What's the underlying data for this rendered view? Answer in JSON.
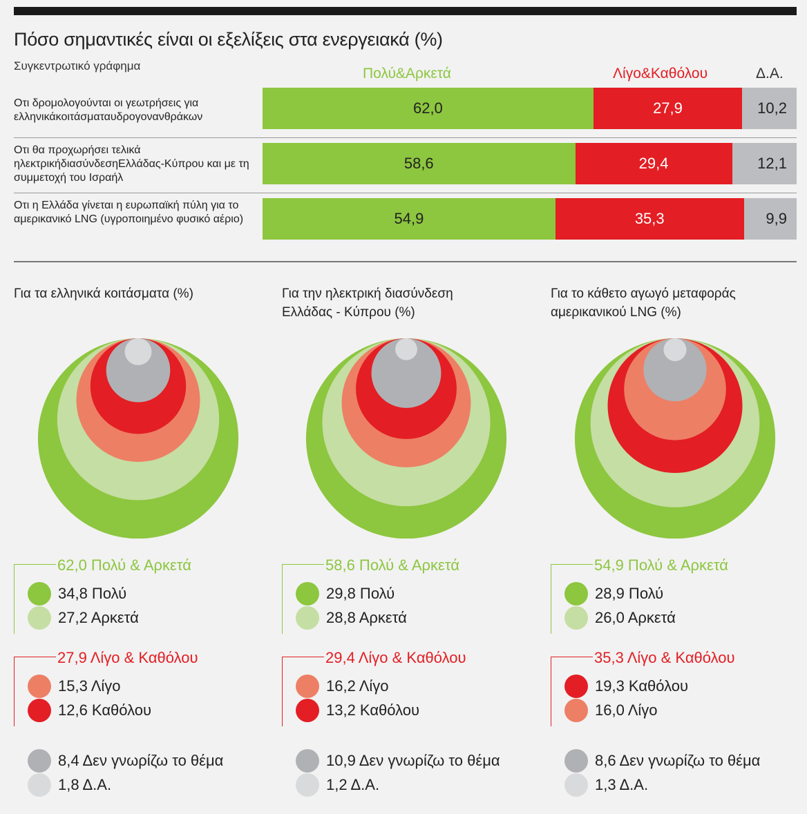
{
  "header": {
    "title": "Πόσο σημαντικές είναι οι εξελίξεις στα ενεργειακά (%)",
    "subtitle": "Συγκεντρωτικό γράφημα"
  },
  "colors": {
    "green": "#8dc63f",
    "light_green": "#c5dea3",
    "red": "#e31e24",
    "salmon": "#ed7f65",
    "grey": "#b0b1b4",
    "light_grey": "#d9dadc"
  },
  "chart_data": [
    {
      "type": "bar",
      "stacked": true,
      "orientation": "horizontal",
      "series_names": [
        "Πολύ&Αρκετά",
        "Λίγο&Καθόλου",
        "Δ.Α."
      ],
      "rows": [
        {
          "label": "Οτι δρομολογούνται οι γεωτρήσεις για ελληνικάκοιτάσματαυδρογονανθράκων",
          "values": [
            62.0,
            27.9,
            10.2
          ],
          "display": [
            "62,0",
            "27,9",
            "10,2"
          ]
        },
        {
          "label": "Οτι θα προχωρήσει τελικά ηλεκτρικήδιασύνδεσηΕλλάδας-Κύπρου και με τη συμμετοχή του Ισραήλ",
          "values": [
            58.6,
            29.4,
            12.1
          ],
          "display": [
            "58,6",
            "29,4",
            "12,1"
          ]
        },
        {
          "label": "Οτι η Ελλάδα γίνεται η ευρωπαϊκή πύλη για το αμερικανικό LNG (υγροποιημένο φυσικό αέριο)",
          "values": [
            54.9,
            35.3,
            9.9
          ],
          "display": [
            "54,9",
            "35,3",
            "9,9"
          ]
        }
      ]
    },
    {
      "type": "nested-circles",
      "panels": [
        {
          "title": "Για τα ελληνικά κοιτάσματα (%)",
          "groups": [
            {
              "header": "62,0 Πολύ & Αρκετά",
              "color": "green",
              "items": [
                {
                  "label": "34,8 Πολύ",
                  "value": 34.8,
                  "color": "#8dc63f"
                },
                {
                  "label": "27,2 Αρκετά",
                  "value": 27.2,
                  "color": "#c5dea3"
                }
              ]
            },
            {
              "header": "27,9 Λίγο & Καθόλου",
              "color": "red",
              "items": [
                {
                  "label": "15,3 Λίγο",
                  "value": 15.3,
                  "color": "#ed7f65"
                },
                {
                  "label": "12,6 Καθόλου",
                  "value": 12.6,
                  "color": "#e31e24"
                }
              ]
            },
            {
              "header": "",
              "items": [
                {
                  "label": "8,4 Δεν γνωρίζω το θέμα",
                  "value": 8.4,
                  "color": "#b0b1b4"
                },
                {
                  "label": "1,8 Δ.Α.",
                  "value": 1.8,
                  "color": "#d9dadc"
                }
              ]
            }
          ]
        },
        {
          "title": "Για την ηλεκτρική διασύνδεση Ελλάδας - Κύπρου (%)",
          "groups": [
            {
              "header": "58,6 Πολύ & Αρκετά",
              "color": "green",
              "items": [
                {
                  "label": "29,8 Πολύ",
                  "value": 29.8,
                  "color": "#8dc63f"
                },
                {
                  "label": "28,8 Αρκετά",
                  "value": 28.8,
                  "color": "#c5dea3"
                }
              ]
            },
            {
              "header": "29,4 Λίγο & Καθόλου",
              "color": "red",
              "items": [
                {
                  "label": "16,2 Λίγο",
                  "value": 16.2,
                  "color": "#ed7f65"
                },
                {
                  "label": "13,2 Καθόλου",
                  "value": 13.2,
                  "color": "#e31e24"
                }
              ]
            },
            {
              "header": "",
              "items": [
                {
                  "label": "10,9 Δεν γνωρίζω το θέμα",
                  "value": 10.9,
                  "color": "#b0b1b4"
                },
                {
                  "label": "1,2 Δ.Α.",
                  "value": 1.2,
                  "color": "#d9dadc"
                }
              ]
            }
          ]
        },
        {
          "title": "Για το κάθετο αγωγό μεταφοράς αμερικανικού LNG (%)",
          "groups": [
            {
              "header": "54,9 Πολύ & Αρκετά",
              "color": "green",
              "items": [
                {
                  "label": "28,9 Πολύ",
                  "value": 28.9,
                  "color": "#8dc63f"
                },
                {
                  "label": "26,0 Αρκετά",
                  "value": 26.0,
                  "color": "#c5dea3"
                }
              ]
            },
            {
              "header": "35,3 Λίγο & Καθόλου",
              "color": "red",
              "items": [
                {
                  "label": "19,3 Καθόλου",
                  "value": 19.3,
                  "color": "#e31e24"
                },
                {
                  "label": "16,0 Λίγο",
                  "value": 16.0,
                  "color": "#ed7f65"
                }
              ]
            },
            {
              "header": "",
              "items": [
                {
                  "label": "8,6 Δεν γνωρίζω το θέμα",
                  "value": 8.6,
                  "color": "#b0b1b4"
                },
                {
                  "label": "1,3 Δ.Α.",
                  "value": 1.3,
                  "color": "#d9dadc"
                }
              ]
            }
          ]
        }
      ]
    }
  ]
}
